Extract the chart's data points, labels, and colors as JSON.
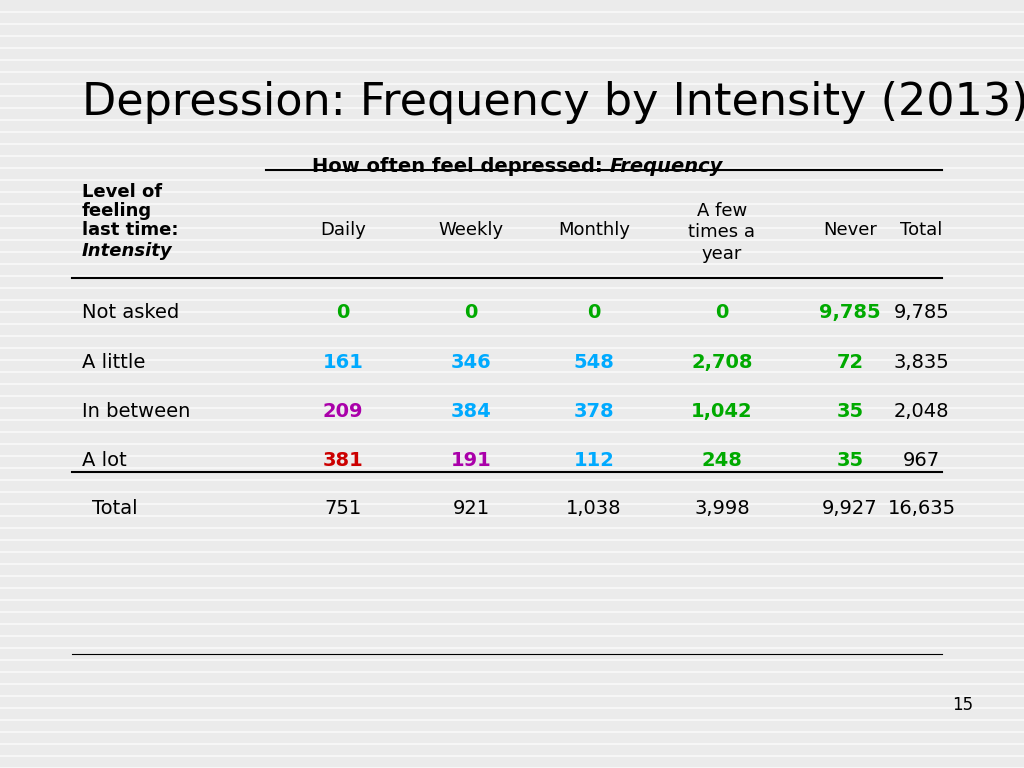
{
  "title": "Depression: Frequency by Intensity (2013)",
  "background_color": "#ebebeb",
  "title_color": "#000000",
  "title_fontsize": 32,
  "red_bar_color": "#cc0000",
  "col_subheaders": [
    "Daily",
    "Weekly",
    "Monthly",
    "A few\ntimes a\nyear",
    "Never",
    "Total"
  ],
  "row_header_lines": [
    "Level of",
    "feeling",
    "last time:",
    "Intensity"
  ],
  "rows": [
    {
      "label": "Not asked",
      "label_color": "#000000",
      "values": [
        "0",
        "0",
        "0",
        "0",
        "9,785",
        "9,785"
      ],
      "colors": [
        "#00aa00",
        "#00aa00",
        "#00aa00",
        "#00aa00",
        "#00aa00",
        "#000000"
      ]
    },
    {
      "label": "A little",
      "label_color": "#000000",
      "values": [
        "161",
        "346",
        "548",
        "2,708",
        "72",
        "3,835"
      ],
      "colors": [
        "#00aaff",
        "#00aaff",
        "#00aaff",
        "#00aa00",
        "#00aa00",
        "#000000"
      ]
    },
    {
      "label": "In between",
      "label_color": "#000000",
      "values": [
        "209",
        "384",
        "378",
        "1,042",
        "35",
        "2,048"
      ],
      "colors": [
        "#aa00aa",
        "#00aaff",
        "#00aaff",
        "#00aa00",
        "#00aa00",
        "#000000"
      ]
    },
    {
      "label": "A lot",
      "label_color": "#000000",
      "values": [
        "381",
        "191",
        "112",
        "248",
        "35",
        "967"
      ],
      "colors": [
        "#cc0000",
        "#aa00aa",
        "#00aaff",
        "#00aa00",
        "#00aa00",
        "#000000"
      ]
    }
  ],
  "total_row": {
    "label": "Total",
    "label_color": "#000000",
    "values": [
      "751",
      "921",
      "1,038",
      "3,998",
      "9,927",
      "16,635"
    ],
    "colors": [
      "#000000",
      "#000000",
      "#000000",
      "#000000",
      "#000000",
      "#000000"
    ]
  },
  "page_number": "15"
}
